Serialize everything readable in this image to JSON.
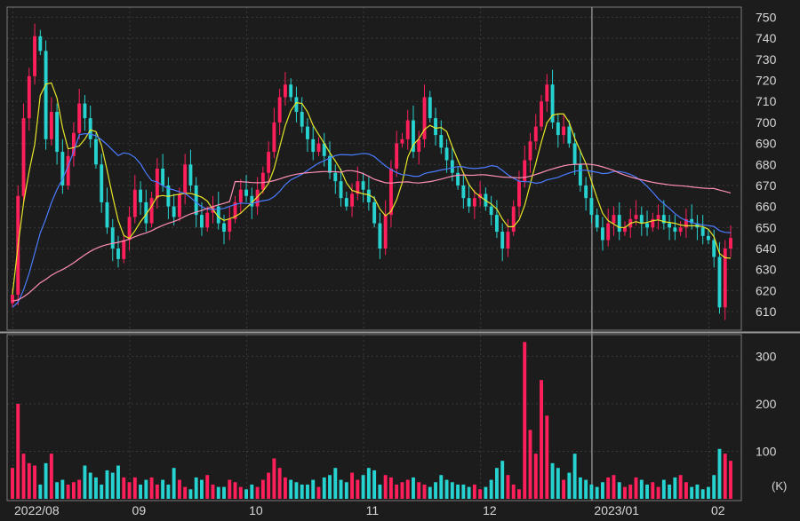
{
  "colors": {
    "background": "#1c1c1c",
    "panel_border": "#7a7a7a",
    "grid": "#3a3a3a",
    "up": "#ff1f5a",
    "down": "#27d3d0",
    "ma_short": "#e6e62a",
    "ma_mid": "#4a7cff",
    "ma_long": "#ff8fb4"
  },
  "chart_data": {
    "type": "candlestick",
    "x_labels": [
      "2022/08",
      "09",
      "10",
      "11",
      "12",
      "2023/01",
      "02"
    ],
    "x_label_index": [
      0,
      21,
      42,
      63,
      84,
      104,
      125
    ],
    "price_axis": {
      "ticks": [
        610,
        620,
        630,
        640,
        650,
        660,
        670,
        680,
        690,
        700,
        710,
        720,
        730,
        740,
        750
      ],
      "ylim": [
        602,
        754
      ]
    },
    "volume_axis": {
      "ticks": [
        100,
        200,
        300
      ],
      "ylim": [
        0,
        340
      ],
      "unit": "(K)"
    },
    "closes": [
      618,
      665,
      702,
      722,
      741,
      734,
      692,
      705,
      686,
      670,
      684,
      695,
      709,
      702,
      692,
      680,
      662,
      650,
      640,
      635,
      644,
      655,
      668,
      662,
      652,
      664,
      678,
      670,
      660,
      655,
      666,
      680,
      670,
      656,
      650,
      657,
      660,
      652,
      648,
      654,
      662,
      668,
      665,
      660,
      668,
      676,
      686,
      700,
      712,
      718,
      712,
      705,
      698,
      692,
      686,
      690,
      684,
      676,
      672,
      664,
      660,
      666,
      672,
      668,
      662,
      652,
      640,
      656,
      678,
      690,
      692,
      701,
      686,
      692,
      712,
      702,
      694,
      688,
      682,
      676,
      670,
      664,
      660,
      664,
      666,
      660,
      656,
      648,
      640,
      648,
      660,
      672,
      682,
      691,
      698,
      710,
      718,
      700,
      694,
      698,
      690,
      680,
      670,
      664,
      656,
      650,
      644,
      652,
      656,
      648,
      650,
      654,
      656,
      652,
      650,
      654,
      656,
      652,
      650,
      648,
      650,
      654,
      652,
      650,
      646,
      644,
      636,
      612,
      640,
      645
    ],
    "volumes": [
      65,
      200,
      95,
      75,
      70,
      30,
      75,
      95,
      35,
      40,
      30,
      35,
      40,
      70,
      55,
      45,
      30,
      60,
      55,
      70,
      45,
      35,
      45,
      30,
      40,
      45,
      30,
      40,
      30,
      65,
      40,
      25,
      20,
      45,
      40,
      50,
      30,
      25,
      25,
      40,
      35,
      25,
      20,
      30,
      25,
      40,
      55,
      85,
      65,
      45,
      40,
      35,
      30,
      30,
      40,
      25,
      45,
      50,
      65,
      40,
      35,
      55,
      40,
      50,
      65,
      60,
      30,
      50,
      45,
      30,
      35,
      40,
      45,
      35,
      30,
      25,
      35,
      50,
      40,
      35,
      30,
      30,
      25,
      30,
      20,
      25,
      40,
      65,
      80,
      50,
      30,
      20,
      330,
      145,
      95,
      250,
      175,
      75,
      65,
      40,
      55,
      95,
      45,
      40,
      30,
      25,
      35,
      45,
      50,
      35,
      25,
      30,
      45,
      40,
      30,
      35,
      25,
      40,
      30,
      45,
      50,
      35,
      25,
      30,
      20,
      25,
      50,
      105,
      95,
      80
    ]
  }
}
